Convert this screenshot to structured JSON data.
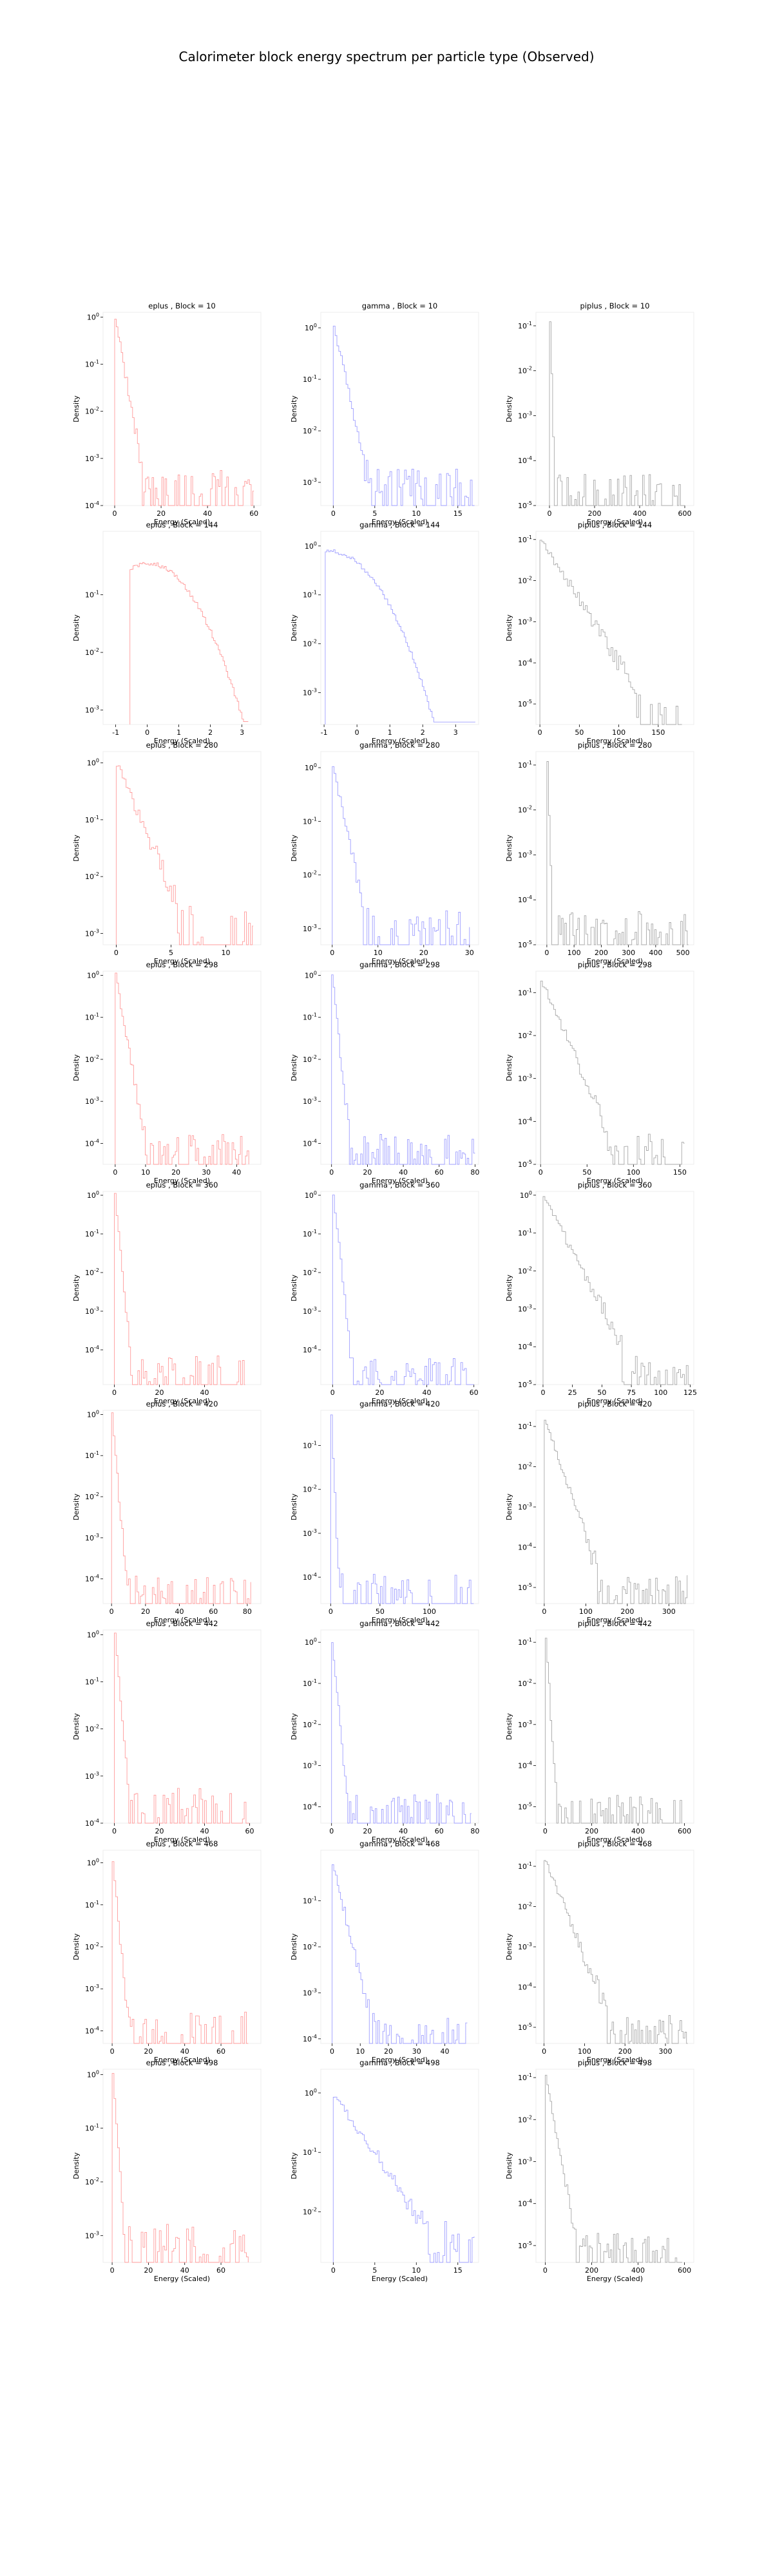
{
  "figure": {
    "title": "Calorimeter block energy spectrum per particle type (Observed)"
  },
  "colors": {
    "eplus": "#ff9b9b",
    "gamma": "#9f9fff",
    "piplus": "#a8a8a8"
  },
  "chart_data": [
    {
      "type": "histogram",
      "particle": "eplus",
      "block": "10",
      "title": "eplus , Block = 10",
      "xlabel": "Energy (Scaled)",
      "ylabel": "Density",
      "yscale": "log",
      "xlim": [
        -5,
        63
      ],
      "ylim": [
        -4,
        0.1
      ],
      "xticks": [
        0,
        20,
        40,
        60
      ],
      "yticks": [
        0,
        -1,
        -2,
        -3,
        -4
      ],
      "data_xmax": 60,
      "bin_width": 0.7,
      "decay": 0.28,
      "noise_floor": -3.9
    },
    {
      "type": "histogram",
      "particle": "gamma",
      "block": "10",
      "title": "gamma , Block = 10",
      "xlabel": "Energy (Scaled)",
      "ylabel": "Density",
      "yscale": "log",
      "xlim": [
        -1.5,
        17.5
      ],
      "ylim": [
        -3.45,
        0.3
      ],
      "xticks": [
        0,
        5,
        10,
        15
      ],
      "yticks": [
        0,
        -1,
        -2,
        -3
      ],
      "data_xmax": 17,
      "bin_width": 0.22,
      "decay": 0.7,
      "noise_floor": -3.3
    },
    {
      "type": "histogram",
      "particle": "piplus",
      "block": "10",
      "title": "piplus , Block = 10",
      "xlabel": "Energy (Scaled)",
      "ylabel": "Density",
      "yscale": "log",
      "xlim": [
        -60,
        640
      ],
      "ylim": [
        -5,
        -0.7
      ],
      "xticks": [
        0,
        200,
        400,
        600
      ],
      "yticks": [
        -1,
        -2,
        -3,
        -4,
        -5
      ],
      "data_xmax": 600,
      "bin_width": 7,
      "decay": 0.18,
      "noise_floor": -4.9,
      "peak": -0.9
    },
    {
      "type": "histogram",
      "particle": "eplus",
      "block": "144",
      "title": "eplus , Block = 144",
      "xlabel": "Energy (Scaled)",
      "ylabel": "Density",
      "yscale": "log",
      "xlim": [
        -1.4,
        3.6
      ],
      "ylim": [
        -3.25,
        0.1
      ],
      "xticks": [
        -1,
        0,
        1,
        2,
        3
      ],
      "yticks": [
        -1,
        -2,
        -3
      ],
      "data_xmax": 3.2,
      "bin_width": 0.05,
      "shape": "dome",
      "peak_x": 0,
      "width": 0.5,
      "floor": -3.2
    },
    {
      "type": "histogram",
      "particle": "gamma",
      "block": "144",
      "title": "gamma , Block = 144",
      "xlabel": "Energy (Scaled)",
      "ylabel": "Density",
      "yscale": "log",
      "xlim": [
        -1.1,
        3.7
      ],
      "ylim": [
        -3.65,
        0.3
      ],
      "xticks": [
        -1,
        0,
        1,
        2,
        3
      ],
      "yticks": [
        0,
        -1,
        -2,
        -3
      ],
      "data_xmax": 3.6,
      "bin_width": 0.05,
      "shape": "dome",
      "peak_x": -0.8,
      "width": 0.6,
      "floor": -3.6
    },
    {
      "type": "histogram",
      "particle": "piplus",
      "block": "144",
      "title": "piplus , Block = 144",
      "xlabel": "Energy (Scaled)",
      "ylabel": "Density",
      "yscale": "log",
      "xlim": [
        -5,
        195
      ],
      "ylim": [
        -5.5,
        -0.8
      ],
      "xticks": [
        0,
        50,
        100,
        150
      ],
      "yticks": [
        -1,
        -2,
        -3,
        -4,
        -5
      ],
      "data_xmax": 180,
      "bin_width": 2.5,
      "decay": 0.03,
      "noise_floor": -5.4,
      "peak": -1
    },
    {
      "type": "histogram",
      "particle": "eplus",
      "block": "280",
      "title": "eplus , Block = 280",
      "xlabel": "Energy (Scaled)",
      "ylabel": "Density",
      "yscale": "log",
      "xlim": [
        -1.2,
        13.2
      ],
      "ylim": [
        -3.2,
        0.2
      ],
      "xticks": [
        0,
        5,
        10
      ],
      "yticks": [
        0,
        -1,
        -2,
        -3
      ],
      "data_xmax": 12.5,
      "bin_width": 0.18,
      "decay": 0.45,
      "noise_floor": -3.15
    },
    {
      "type": "histogram",
      "particle": "gamma",
      "block": "280",
      "title": "gamma , Block = 280",
      "xlabel": "Energy (Scaled)",
      "ylabel": "Density",
      "yscale": "log",
      "xlim": [
        -2.5,
        32
      ],
      "ylim": [
        -3.3,
        0.3
      ],
      "xticks": [
        0,
        10,
        20,
        30
      ],
      "yticks": [
        0,
        -1,
        -2,
        -3
      ],
      "data_xmax": 30,
      "bin_width": 0.4,
      "decay": 0.38,
      "noise_floor": -3.2
    },
    {
      "type": "histogram",
      "particle": "piplus",
      "block": "280",
      "title": "piplus , Block = 280",
      "xlabel": "Energy (Scaled)",
      "ylabel": "Density",
      "yscale": "log",
      "xlim": [
        -40,
        540
      ],
      "ylim": [
        -5,
        -0.7
      ],
      "xticks": [
        0,
        100,
        200,
        300,
        400,
        500
      ],
      "yticks": [
        -1,
        -2,
        -3,
        -4,
        -5
      ],
      "data_xmax": 520,
      "bin_width": 6,
      "decay": 0.2,
      "noise_floor": -4.9,
      "peak": -0.9
    },
    {
      "type": "histogram",
      "particle": "eplus",
      "block": "298",
      "title": "eplus , Block = 298",
      "xlabel": "Energy (Scaled)",
      "ylabel": "Density",
      "yscale": "log",
      "xlim": [
        -4,
        48
      ],
      "ylim": [
        -4.5,
        0.1
      ],
      "xticks": [
        0,
        10,
        20,
        30,
        40
      ],
      "yticks": [
        0,
        -1,
        -2,
        -3,
        -4
      ],
      "data_xmax": 44,
      "bin_width": 0.55,
      "decay": 0.42,
      "noise_floor": -4.4
    },
    {
      "type": "histogram",
      "particle": "gamma",
      "block": "298",
      "title": "gamma , Block = 298",
      "xlabel": "Energy (Scaled)",
      "ylabel": "Density",
      "yscale": "log",
      "xlim": [
        -6,
        82
      ],
      "ylim": [
        -4.5,
        0.1
      ],
      "xticks": [
        0,
        20,
        40,
        60,
        80
      ],
      "yticks": [
        0,
        -1,
        -2,
        -3,
        -4
      ],
      "data_xmax": 80,
      "bin_width": 0.9,
      "decay": 0.4,
      "noise_floor": -4.4
    },
    {
      "type": "histogram",
      "particle": "piplus",
      "block": "298",
      "title": "piplus , Block = 298",
      "xlabel": "Energy (Scaled)",
      "ylabel": "Density",
      "yscale": "log",
      "xlim": [
        -5,
        165
      ],
      "ylim": [
        -5,
        -0.5
      ],
      "xticks": [
        0,
        50,
        100,
        150
      ],
      "yticks": [
        -1,
        -2,
        -3,
        -4,
        -5
      ],
      "data_xmax": 155,
      "bin_width": 2,
      "decay": 0.05,
      "noise_floor": -4.9,
      "peak": -0.7
    },
    {
      "type": "histogram",
      "particle": "eplus",
      "block": "360",
      "title": "eplus , Block = 360",
      "xlabel": "Energy (Scaled)",
      "ylabel": "Density",
      "yscale": "log",
      "xlim": [
        -5,
        65
      ],
      "ylim": [
        -4.9,
        0.1
      ],
      "xticks": [
        0,
        20,
        40
      ],
      "yticks": [
        0,
        -1,
        -2,
        -3,
        -4
      ],
      "data_xmax": 58,
      "bin_width": 0.8,
      "decay": 0.6,
      "noise_floor": -4.8
    },
    {
      "type": "histogram",
      "particle": "gamma",
      "block": "360",
      "title": "gamma , Block = 360",
      "xlabel": "Energy (Scaled)",
      "ylabel": "Density",
      "yscale": "log",
      "xlim": [
        -5,
        62
      ],
      "ylim": [
        -4.9,
        0.1
      ],
      "xticks": [
        0,
        20,
        40,
        60
      ],
      "yticks": [
        0,
        -1,
        -2,
        -3,
        -4
      ],
      "data_xmax": 60,
      "bin_width": 0.8,
      "decay": 0.55,
      "noise_floor": -4.8
    },
    {
      "type": "histogram",
      "particle": "piplus",
      "block": "360",
      "title": "piplus , Block = 360",
      "xlabel": "Energy (Scaled)",
      "ylabel": "Density",
      "yscale": "log",
      "xlim": [
        -6,
        128
      ],
      "ylim": [
        -5,
        0.1
      ],
      "xticks": [
        0,
        25,
        50,
        75,
        100,
        125
      ],
      "yticks": [
        0,
        -1,
        -2,
        -3,
        -4,
        -5
      ],
      "data_xmax": 125,
      "bin_width": 1.6,
      "decay": 0.06,
      "noise_floor": -4.9,
      "peak": 0
    },
    {
      "type": "histogram",
      "particle": "eplus",
      "block": "420",
      "title": "eplus , Block = 420",
      "xlabel": "Energy (Scaled)",
      "ylabel": "Density",
      "yscale": "log",
      "xlim": [
        -5,
        88
      ],
      "ylim": [
        -4.6,
        0.1
      ],
      "xticks": [
        0,
        20,
        40,
        60,
        80
      ],
      "yticks": [
        0,
        -1,
        -2,
        -3,
        -4
      ],
      "data_xmax": 82,
      "bin_width": 1,
      "decay": 0.5,
      "noise_floor": -4.5
    },
    {
      "type": "histogram",
      "particle": "gamma",
      "block": "420",
      "title": "gamma , Block = 420",
      "xlabel": "Energy (Scaled)",
      "ylabel": "Density",
      "yscale": "log",
      "xlim": [
        -10,
        150
      ],
      "ylim": [
        -4.6,
        -0.2
      ],
      "xticks": [
        0,
        50,
        100
      ],
      "yticks": [
        -1,
        -2,
        -3,
        -4
      ],
      "data_xmax": 145,
      "bin_width": 1.8,
      "decay": 0.5,
      "noise_floor": -4.5,
      "peak": -0.3
    },
    {
      "type": "histogram",
      "particle": "piplus",
      "block": "420",
      "title": "piplus , Block = 420",
      "xlabel": "Energy (Scaled)",
      "ylabel": "Density",
      "yscale": "log",
      "xlim": [
        -20,
        360
      ],
      "ylim": [
        -5.4,
        -0.6
      ],
      "xticks": [
        0,
        100,
        200,
        300
      ],
      "yticks": [
        -1,
        -2,
        -3,
        -4,
        -5
      ],
      "data_xmax": 345,
      "bin_width": 4,
      "decay": 0.03,
      "noise_floor": -5.3,
      "peak": -0.8
    },
    {
      "type": "histogram",
      "particle": "eplus",
      "block": "442",
      "title": "eplus , Block = 442",
      "xlabel": "Energy (Scaled)",
      "ylabel": "Density",
      "yscale": "log",
      "xlim": [
        -5,
        65
      ],
      "ylim": [
        -4,
        0.1
      ],
      "xticks": [
        0,
        20,
        40,
        60
      ],
      "yticks": [
        0,
        -1,
        -2,
        -3,
        -4
      ],
      "data_xmax": 60,
      "bin_width": 0.8,
      "decay": 0.55,
      "noise_floor": -3.9
    },
    {
      "type": "histogram",
      "particle": "gamma",
      "block": "442",
      "title": "gamma , Block = 442",
      "xlabel": "Energy (Scaled)",
      "ylabel": "Density",
      "yscale": "log",
      "xlim": [
        -6,
        82
      ],
      "ylim": [
        -4.4,
        0.3
      ],
      "xticks": [
        0,
        20,
        40,
        60,
        80
      ],
      "yticks": [
        0,
        -1,
        -2,
        -3,
        -4
      ],
      "data_xmax": 78,
      "bin_width": 0.9,
      "decay": 0.45,
      "noise_floor": -4.3
    },
    {
      "type": "histogram",
      "particle": "piplus",
      "block": "442",
      "title": "piplus , Block = 442",
      "xlabel": "Energy (Scaled)",
      "ylabel": "Density",
      "yscale": "log",
      "xlim": [
        -40,
        640
      ],
      "ylim": [
        -5.4,
        -0.7
      ],
      "xticks": [
        0,
        200,
        400,
        600
      ],
      "yticks": [
        -1,
        -2,
        -3,
        -4,
        -5
      ],
      "data_xmax": 590,
      "bin_width": 7,
      "decay": 0.09,
      "noise_floor": -5.3,
      "peak": -0.85
    },
    {
      "type": "histogram",
      "particle": "eplus",
      "block": "468",
      "title": "eplus , Block = 468",
      "xlabel": "Energy (Scaled)",
      "ylabel": "Density",
      "yscale": "log",
      "xlim": [
        -5,
        82
      ],
      "ylim": [
        -4.3,
        0.3
      ],
      "xticks": [
        0,
        20,
        40,
        60
      ],
      "yticks": [
        0,
        -1,
        -2,
        -3,
        -4
      ],
      "data_xmax": 75,
      "bin_width": 1,
      "decay": 0.45,
      "noise_floor": -4.2
    },
    {
      "type": "histogram",
      "particle": "gamma",
      "block": "468",
      "title": "gamma , Block = 468",
      "xlabel": "Energy (Scaled)",
      "ylabel": "Density",
      "yscale": "log",
      "xlim": [
        -4,
        52
      ],
      "ylim": [
        -4.1,
        0.1
      ],
      "xticks": [
        0,
        10,
        20,
        30,
        40
      ],
      "yticks": [
        -1,
        -2,
        -3,
        -4
      ],
      "data_xmax": 48,
      "bin_width": 0.6,
      "decay": 0.25,
      "noise_floor": -4,
      "peak": -0.2
    },
    {
      "type": "histogram",
      "particle": "piplus",
      "block": "468",
      "title": "piplus , Block = 468",
      "xlabel": "Energy (Scaled)",
      "ylabel": "Density",
      "yscale": "log",
      "xlim": [
        -20,
        370
      ],
      "ylim": [
        -5.4,
        -0.6
      ],
      "xticks": [
        0,
        100,
        200,
        300
      ],
      "yticks": [
        -1,
        -2,
        -3,
        -4,
        -5
      ],
      "data_xmax": 355,
      "bin_width": 4,
      "decay": 0.025,
      "noise_floor": -5.3,
      "peak": -0.8
    },
    {
      "type": "histogram",
      "particle": "eplus",
      "block": "498",
      "title": "eplus , Block = 498",
      "xlabel": "Energy (Scaled)",
      "ylabel": "Density",
      "yscale": "log",
      "xlim": [
        -5,
        82
      ],
      "ylim": [
        -3.5,
        0.1
      ],
      "xticks": [
        0,
        20,
        40,
        60
      ],
      "yticks": [
        0,
        -1,
        -2,
        -3
      ],
      "data_xmax": 75,
      "bin_width": 1,
      "decay": 0.5,
      "noise_floor": -3.4
    },
    {
      "type": "histogram",
      "particle": "gamma",
      "block": "498",
      "title": "gamma , Block = 498",
      "xlabel": "Energy (Scaled)",
      "ylabel": "Density",
      "yscale": "log",
      "xlim": [
        -1.5,
        17.5
      ],
      "ylim": [
        -2.85,
        0.4
      ],
      "xticks": [
        0,
        5,
        10,
        15
      ],
      "yticks": [
        0,
        -1,
        -2
      ],
      "data_xmax": 17,
      "bin_width": 0.22,
      "decay": 0.2,
      "noise_floor": -2.8,
      "peak": -0.05
    },
    {
      "type": "histogram",
      "particle": "piplus",
      "block": "498",
      "title": "piplus , Block = 498",
      "xlabel": "Energy (Scaled)",
      "ylabel": "Density",
      "yscale": "log",
      "xlim": [
        -40,
        640
      ],
      "ylim": [
        -5.4,
        -0.8
      ],
      "xticks": [
        0,
        200,
        400,
        600
      ],
      "yticks": [
        -1,
        -2,
        -3,
        -4,
        -5
      ],
      "data_xmax": 590,
      "bin_width": 7,
      "decay": 0.03,
      "noise_floor": -5.3,
      "peak": -1
    }
  ]
}
